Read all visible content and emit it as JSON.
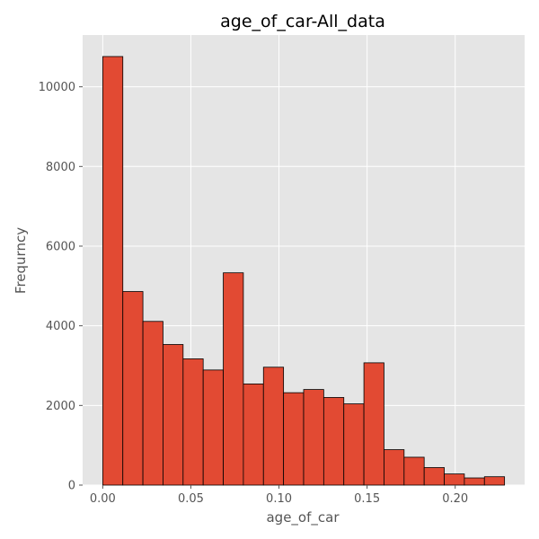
{
  "chart_data": {
    "type": "bar",
    "title": "age_of_car-All_data",
    "xlabel": "age_of_car",
    "ylabel": "Frequrncy",
    "bin_edges": [
      0.0,
      0.0114,
      0.0228,
      0.0342,
      0.0456,
      0.057,
      0.0684,
      0.0798,
      0.0912,
      0.1026,
      0.114,
      0.1254,
      0.1368,
      0.1482,
      0.1596,
      0.171,
      0.1824,
      0.1938,
      0.2052,
      0.2166,
      0.228
    ],
    "values": [
      10760,
      4860,
      4110,
      3530,
      3170,
      2890,
      5330,
      2540,
      2960,
      2320,
      2400,
      2200,
      2040,
      3070,
      890,
      700,
      440,
      280,
      180,
      210
    ],
    "xlim": [
      -0.0114,
      0.2394
    ],
    "ylim": [
      0,
      11300
    ],
    "xticks": [
      0.0,
      0.05,
      0.1,
      0.15,
      0.2
    ],
    "xtick_labels": [
      "0.00",
      "0.05",
      "0.10",
      "0.15",
      "0.20"
    ],
    "yticks": [
      0,
      2000,
      4000,
      6000,
      8000,
      10000
    ],
    "ytick_labels": [
      "0",
      "2000",
      "4000",
      "6000",
      "8000",
      "10000"
    ],
    "grid": true,
    "colors": {
      "bar_fill": "#E24A33",
      "bar_edge": "#000000",
      "plot_bg": "#E5E5E5",
      "grid": "#FFFFFF"
    }
  }
}
